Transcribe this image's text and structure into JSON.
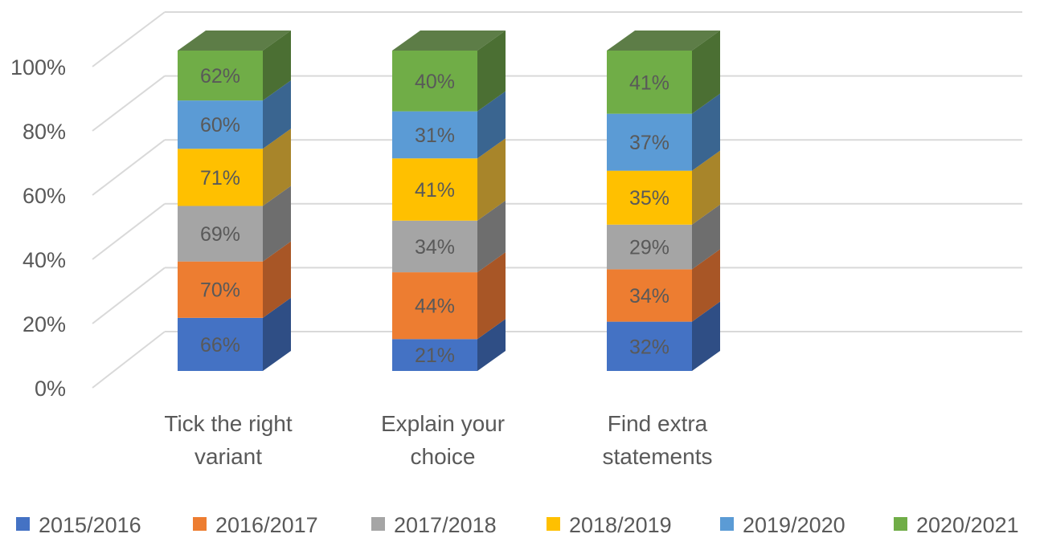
{
  "chart_data": {
    "type": "bar",
    "subtype": "3d-stacked-100-percent",
    "title": "",
    "xlabel": "",
    "ylabel": "",
    "ylim": [
      0,
      100
    ],
    "yticks": [
      "0%",
      "20%",
      "40%",
      "60%",
      "80%",
      "100%"
    ],
    "categories": [
      [
        "Tick the right",
        "variant"
      ],
      [
        "Explain your",
        "choice"
      ],
      [
        "Find extra",
        "statements"
      ]
    ],
    "series": [
      {
        "name": "2015/2016",
        "values": [
          66,
          21,
          32
        ],
        "labels": [
          "66%",
          "21%",
          "32%"
        ],
        "color": "#4472C4",
        "side": "#2F4E85"
      },
      {
        "name": "2016/2017",
        "values": [
          70,
          44,
          34
        ],
        "labels": [
          "70%",
          "44%",
          "34%"
        ],
        "color": "#ED7D31",
        "side": "#A85626"
      },
      {
        "name": "2017/2018",
        "values": [
          69,
          34,
          29
        ],
        "labels": [
          "69%",
          "34%",
          "29%"
        ],
        "color": "#A5A5A5",
        "side": "#6E6E6E"
      },
      {
        "name": "2018/2019",
        "values": [
          71,
          41,
          35
        ],
        "labels": [
          "71%",
          "41%",
          "35%"
        ],
        "color": "#FFC000",
        "side": "#A8852A"
      },
      {
        "name": "2019/2020",
        "values": [
          60,
          31,
          37
        ],
        "labels": [
          "60%",
          "31%",
          "37%"
        ],
        "color": "#5B9BD5",
        "side": "#3A6590"
      },
      {
        "name": "2020/2021",
        "values": [
          62,
          40,
          41
        ],
        "labels": [
          "62%",
          "40%",
          "41%"
        ],
        "color": "#70AD47",
        "side": "#4B6F33"
      }
    ],
    "grid": true,
    "legend": "bottom"
  }
}
